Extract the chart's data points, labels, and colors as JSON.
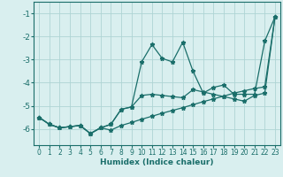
{
  "xlabel": "Humidex (Indice chaleur)",
  "xlim": [
    -0.5,
    23.5
  ],
  "ylim": [
    -6.7,
    -0.5
  ],
  "yticks": [
    -6,
    -5,
    -4,
    -3,
    -2,
    -1
  ],
  "xticks": [
    0,
    1,
    2,
    3,
    4,
    5,
    6,
    7,
    8,
    9,
    10,
    11,
    12,
    13,
    14,
    15,
    16,
    17,
    18,
    19,
    20,
    21,
    22,
    23
  ],
  "bg_color": "#d9efef",
  "grid_color": "#aed4d4",
  "line_color": "#1a6e6a",
  "line1_x": [
    0,
    1,
    2,
    3,
    4,
    5,
    6,
    7,
    8,
    9,
    10,
    11,
    12,
    13,
    14,
    15,
    16,
    17,
    18,
    19,
    20,
    21,
    22,
    23
  ],
  "line1_y": [
    -5.5,
    -5.8,
    -5.95,
    -5.9,
    -5.85,
    -6.2,
    -5.95,
    -5.8,
    -5.15,
    -5.05,
    -4.55,
    -4.5,
    -4.55,
    -4.6,
    -4.65,
    -4.3,
    -4.4,
    -4.5,
    -4.6,
    -4.7,
    -4.8,
    -4.55,
    -4.45,
    -1.15
  ],
  "line2_x": [
    0,
    1,
    2,
    3,
    4,
    5,
    6,
    7,
    8,
    9,
    10,
    11,
    12,
    13,
    14,
    15,
    16,
    17,
    18,
    19,
    20,
    21,
    22,
    23
  ],
  "line2_y": [
    -5.5,
    -5.8,
    -5.95,
    -5.9,
    -5.85,
    -6.2,
    -5.95,
    -5.8,
    -5.15,
    -5.05,
    -3.1,
    -2.35,
    -2.95,
    -3.1,
    -2.25,
    -3.5,
    -4.45,
    -4.2,
    -4.1,
    -4.5,
    -4.5,
    -4.5,
    -2.2,
    -1.15
  ],
  "line3_x": [
    0,
    1,
    2,
    3,
    4,
    5,
    6,
    7,
    8,
    9,
    10,
    11,
    12,
    13,
    14,
    15,
    16,
    17,
    18,
    19,
    20,
    21,
    22,
    23
  ],
  "line3_y": [
    -5.5,
    -5.8,
    -5.95,
    -5.9,
    -5.85,
    -6.2,
    -5.95,
    -6.05,
    -5.85,
    -5.72,
    -5.58,
    -5.45,
    -5.32,
    -5.2,
    -5.08,
    -4.95,
    -4.82,
    -4.7,
    -4.58,
    -4.45,
    -4.35,
    -4.25,
    -4.18,
    -1.15
  ]
}
